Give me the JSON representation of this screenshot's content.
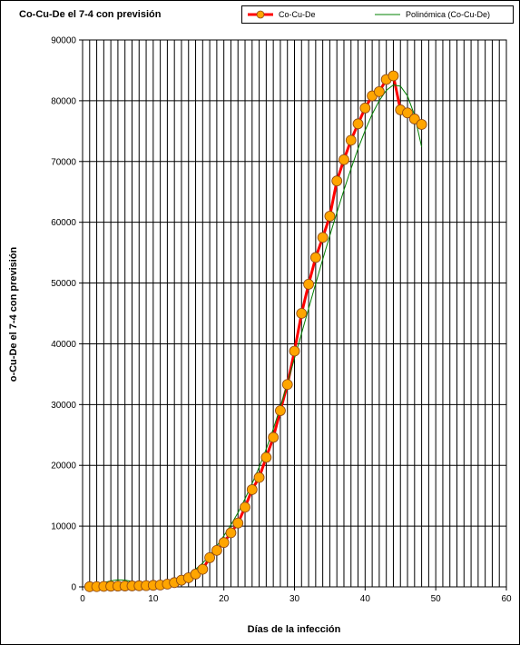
{
  "chart_data": {
    "type": "line",
    "title": "Co-Cu-De el 7-4 con previsión",
    "xlabel": "Días de la infección",
    "ylabel": "o-Cu-De el 7-4 con previsión",
    "xlim": [
      0,
      60
    ],
    "ylim": [
      0,
      90000
    ],
    "x_ticks": [
      "0",
      "10",
      "20",
      "30",
      "40",
      "50",
      "60"
    ],
    "y_ticks": [
      "0",
      "10000",
      "20000",
      "30000",
      "40000",
      "50000",
      "60000",
      "70000",
      "80000",
      "90000"
    ],
    "grid": "vertical every 1 day, horizontal every 10000",
    "legend_position": "top-right",
    "series": [
      {
        "name": "Co-Cu-De",
        "color": "#ff0000",
        "marker_color": "#ffa500",
        "x": [
          1,
          2,
          3,
          4,
          5,
          6,
          7,
          8,
          9,
          10,
          11,
          12,
          13,
          14,
          15,
          16,
          17,
          18,
          19,
          20,
          21,
          22,
          23,
          24,
          25,
          26,
          27,
          28,
          29,
          30,
          31,
          32,
          33,
          34,
          35,
          36,
          37,
          38,
          39,
          40,
          41,
          42,
          43,
          44,
          45,
          46,
          47,
          48
        ],
        "y": [
          25,
          40,
          80,
          100,
          120,
          140,
          160,
          180,
          200,
          250,
          300,
          450,
          700,
          1100,
          1500,
          2100,
          2900,
          4800,
          6000,
          7300,
          8900,
          10500,
          13100,
          16000,
          18000,
          21300,
          24600,
          29000,
          33300,
          38800,
          45000,
          49800,
          54200,
          57500,
          61000,
          66800,
          70300,
          73500,
          76200,
          78800,
          80800,
          81500,
          83500,
          84100,
          78500,
          78000,
          77000,
          76100
        ]
      },
      {
        "name": "Polinómica (Co-Cu-De)",
        "color": "#008000",
        "type": "trendline",
        "x": [
          1,
          2,
          3,
          4,
          5,
          6,
          7,
          8,
          9,
          10,
          11,
          12,
          13,
          14,
          15,
          16,
          17,
          18,
          19,
          20,
          21,
          22,
          23,
          24,
          25,
          26,
          27,
          28,
          29,
          30,
          31,
          32,
          33,
          34,
          35,
          36,
          37,
          38,
          39,
          40,
          41,
          42,
          43,
          44,
          45,
          46,
          47,
          48
        ],
        "y": [
          0,
          300,
          700,
          1000,
          1150,
          1100,
          900,
          650,
          450,
          300,
          300,
          450,
          750,
          1250,
          1950,
          2900,
          3900,
          5200,
          6700,
          8400,
          10200,
          12200,
          14500,
          17000,
          19700,
          22700,
          26000,
          29600,
          33500,
          37600,
          41700,
          45800,
          49900,
          53900,
          57800,
          61600,
          65300,
          68800,
          72100,
          75100,
          77800,
          80000,
          81700,
          82600,
          82400,
          80800,
          77600,
          72400
        ]
      }
    ]
  }
}
